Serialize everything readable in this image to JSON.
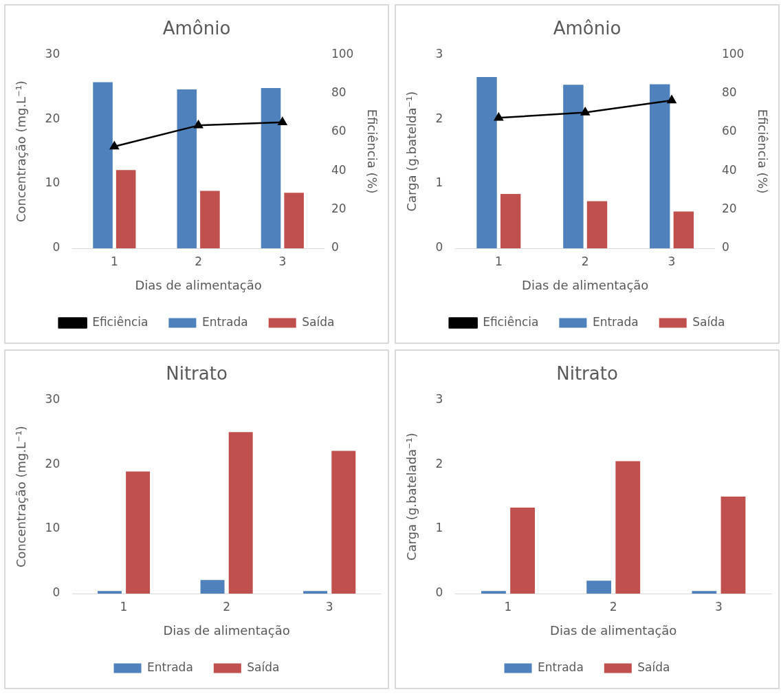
{
  "chart_data": [
    {
      "type": "bar",
      "title": "Amônio",
      "xlabel": "Dias de alimentação",
      "ylabel": "Concentração (mg.L⁻¹)",
      "y2label": "Eficiência (%)",
      "categories": [
        "1",
        "2",
        "3"
      ],
      "ylim": [
        0,
        30
      ],
      "yticks": [
        0,
        10,
        20,
        30
      ],
      "y2lim": [
        0,
        100
      ],
      "y2ticks": [
        0,
        20,
        40,
        60,
        80,
        100
      ],
      "grid": false,
      "legend": "bottom",
      "marker": "triangle",
      "line_style": "solid",
      "series": [
        {
          "name": "Entrada",
          "color": "#4f81bd",
          "values": [
            25.7,
            24.6,
            24.8
          ]
        },
        {
          "name": "Saída",
          "color": "#c0504d",
          "values": [
            12.1,
            8.9,
            8.6
          ]
        },
        {
          "name": "Eficiência",
          "type": "line",
          "axis": "y2",
          "color": "#000000",
          "values": [
            52.5,
            63.4,
            65.0
          ]
        }
      ]
    },
    {
      "type": "bar",
      "title": "Amônio",
      "xlabel": "Dias de alimentação",
      "ylabel": "Carga (g.batelda⁻¹)",
      "y2label": "Eficiência (%)",
      "categories": [
        "1",
        "2",
        "3"
      ],
      "ylim": [
        0,
        3
      ],
      "yticks": [
        0,
        1,
        2,
        3
      ],
      "y2lim": [
        0,
        100
      ],
      "y2ticks": [
        0,
        20,
        40,
        60,
        80,
        100
      ],
      "grid": false,
      "legend": "bottom",
      "marker": "triangle",
      "line_style": "solid",
      "series": [
        {
          "name": "Entrada",
          "color": "#4f81bd",
          "values": [
            2.65,
            2.53,
            2.54
          ]
        },
        {
          "name": "Saída",
          "color": "#c0504d",
          "values": [
            0.84,
            0.73,
            0.57
          ]
        },
        {
          "name": "Eficiência",
          "type": "line",
          "axis": "y2",
          "color": "#000000",
          "values": [
            67.3,
            70.1,
            76.3
          ]
        }
      ]
    },
    {
      "type": "bar",
      "title": "Nitrato",
      "xlabel": "Dias de alimentação",
      "ylabel": "Concentração (mg.L⁻¹)",
      "categories": [
        "1",
        "2",
        "3"
      ],
      "ylim": [
        0,
        30
      ],
      "yticks": [
        0,
        10,
        20,
        30
      ],
      "grid": false,
      "legend": "bottom",
      "series": [
        {
          "name": "Entrada",
          "color": "#4f81bd",
          "values": [
            0.4,
            2.1,
            0.4
          ]
        },
        {
          "name": "Saída",
          "color": "#c0504d",
          "values": [
            18.9,
            25.0,
            22.1
          ]
        }
      ]
    },
    {
      "type": "bar",
      "title": "Nitrato",
      "xlabel": "Dias de alimentação",
      "ylabel": "Carga (g.batelada⁻¹)",
      "categories": [
        "1",
        "2",
        "3"
      ],
      "ylim": [
        0,
        3
      ],
      "yticks": [
        0,
        1,
        2,
        3
      ],
      "grid": false,
      "legend": "bottom",
      "series": [
        {
          "name": "Entrada",
          "color": "#4f81bd",
          "values": [
            0.04,
            0.2,
            0.04
          ]
        },
        {
          "name": "Saída",
          "color": "#c0504d",
          "values": [
            1.33,
            2.05,
            1.5
          ]
        }
      ]
    }
  ]
}
